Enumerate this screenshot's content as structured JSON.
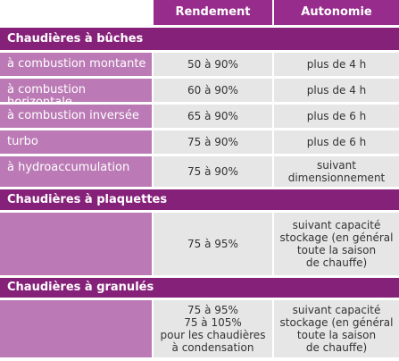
{
  "header": {
    "columns": [
      "Rendement",
      "Autonomie"
    ]
  },
  "sections": [
    {
      "title": "Chaudières à bûches",
      "rows": [
        {
          "label": "à combustion montante",
          "rendement": [
            "50 à 90%"
          ],
          "autonomie": [
            "plus de 4 h"
          ]
        },
        {
          "label": "à combustion horizontale",
          "rendement": [
            "60 à 90%"
          ],
          "autonomie": [
            "plus de 4 h"
          ]
        },
        {
          "label": "à combustion inversée",
          "rendement": [
            "65 à 90%"
          ],
          "autonomie": [
            "plus de 6 h"
          ]
        },
        {
          "label": "turbo",
          "rendement": [
            "75 à 90%"
          ],
          "autonomie": [
            "plus de 6 h"
          ]
        },
        {
          "label": "à hydroaccumulation",
          "rendement": [
            "75 à 90%"
          ],
          "autonomie": [
            "suivant",
            "dimensionnement"
          ]
        }
      ]
    },
    {
      "title": "Chaudières à plaquettes",
      "rows": [
        {
          "rendement": [
            "75 à 95%"
          ],
          "autonomie": [
            "suivant capacité",
            "stockage (en général",
            "toute la saison",
            "de chauffe)"
          ]
        }
      ]
    },
    {
      "title": "Chaudières à granulés",
      "rows": [
        {
          "rendement": [
            "75 à 95%",
            "75 à 105%",
            "pour les chaudières",
            "à condensation"
          ],
          "autonomie": [
            "suivant capacité",
            "stockage (en général",
            "toute la saison",
            "de chauffe)"
          ]
        }
      ]
    }
  ]
}
